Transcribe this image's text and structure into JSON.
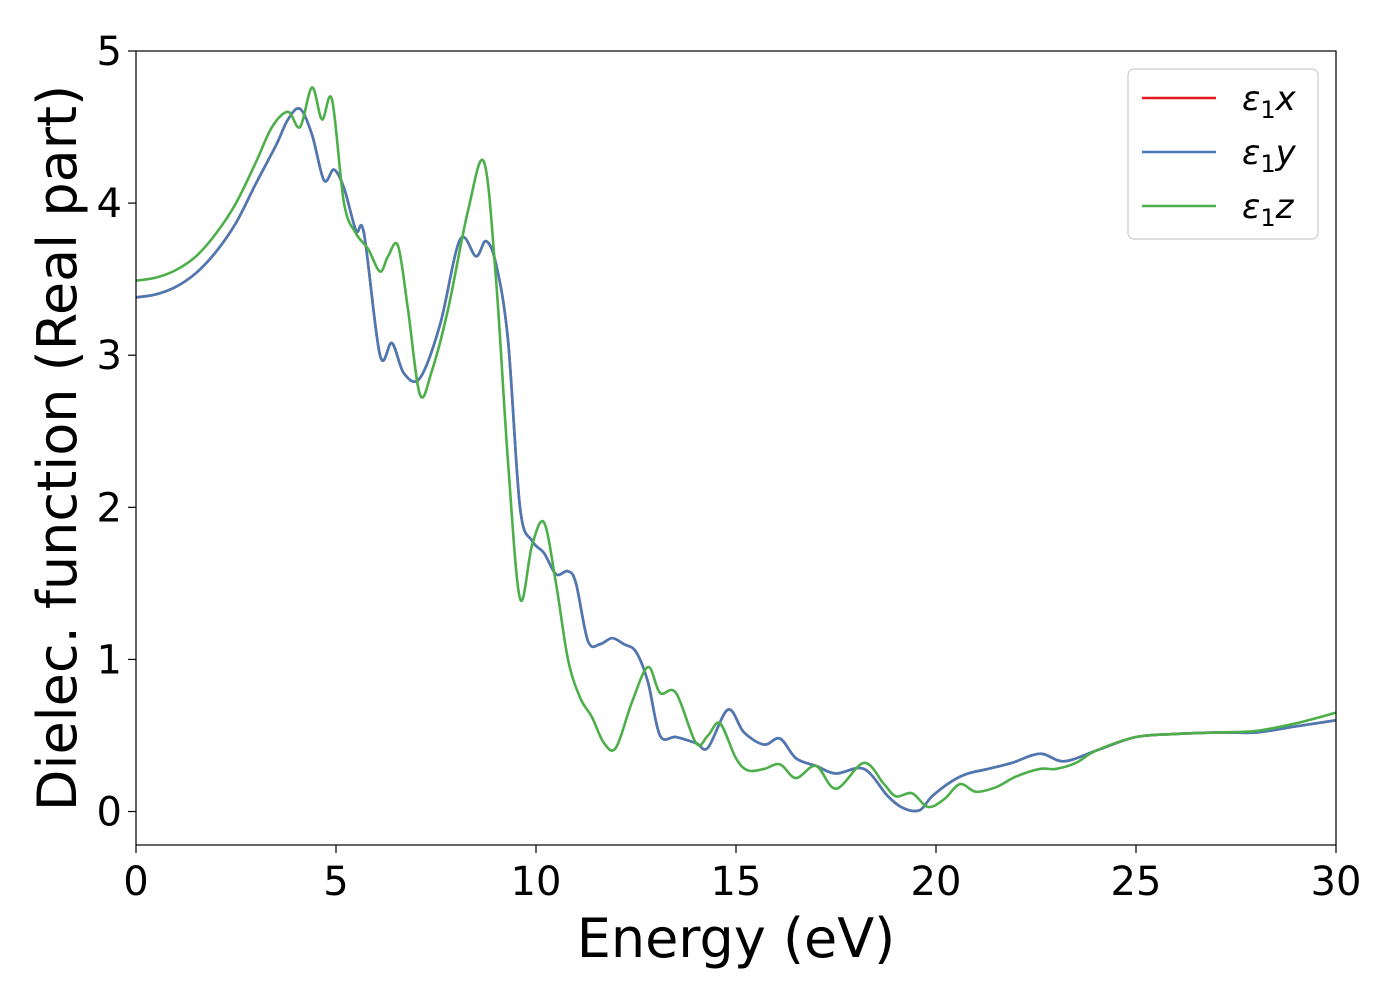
{
  "chart_data": {
    "type": "line",
    "title": "",
    "xlabel": "Energy (eV)",
    "ylabel": "Dielec. function (Real part)",
    "xlim": [
      0,
      30
    ],
    "ylim": [
      -0.22,
      5.0
    ],
    "xticks": [
      0,
      5,
      10,
      15,
      20,
      25,
      30
    ],
    "yticks": [
      0,
      1,
      2,
      3,
      4,
      5
    ],
    "grid": false,
    "legend_position": "top-right",
    "legend": [
      {
        "label": "ε1x",
        "main": "ε",
        "sub": "1",
        "suffix": "x",
        "color": "#e41a1c"
      },
      {
        "label": "ε1y",
        "main": "ε",
        "sub": "1",
        "suffix": "y",
        "color": "#4a7ab5"
      },
      {
        "label": "ε1z",
        "main": "ε",
        "sub": "1",
        "suffix": "z",
        "color": "#4daf4a"
      }
    ],
    "series": [
      {
        "name": "ε1x",
        "color": "#e41a1c",
        "x": [
          0,
          0.5,
          1,
          1.5,
          2,
          2.5,
          3,
          3.5,
          3.8,
          4.1,
          4.4,
          4.7,
          4.95,
          5.2,
          5.5,
          5.7,
          6.1,
          6.4,
          6.7,
          7.1,
          7.6,
          8.1,
          8.5,
          8.75,
          9.0,
          9.3,
          9.6,
          9.9,
          10.2,
          10.5,
          10.8,
          11.0,
          11.3,
          11.6,
          11.9,
          12.2,
          12.5,
          12.8,
          13.1,
          13.5,
          14.0,
          14.3,
          14.8,
          15.2,
          15.7,
          16.1,
          16.5,
          17.0,
          17.5,
          18.2,
          18.8,
          19.2,
          19.6,
          19.9,
          20.4,
          20.8,
          21.3,
          21.9,
          22.6,
          23.2,
          24,
          25,
          26,
          27,
          28,
          29,
          30
        ],
        "y": [
          3.38,
          3.4,
          3.45,
          3.54,
          3.68,
          3.87,
          4.13,
          4.38,
          4.55,
          4.62,
          4.45,
          4.15,
          4.22,
          4.1,
          3.82,
          3.8,
          3.0,
          3.08,
          2.88,
          2.85,
          3.2,
          3.76,
          3.65,
          3.75,
          3.6,
          3.1,
          2.0,
          1.78,
          1.7,
          1.56,
          1.58,
          1.5,
          1.12,
          1.1,
          1.14,
          1.1,
          1.05,
          0.85,
          0.5,
          0.49,
          0.45,
          0.42,
          0.67,
          0.52,
          0.44,
          0.48,
          0.35,
          0.3,
          0.25,
          0.28,
          0.1,
          0.02,
          0.01,
          0.1,
          0.2,
          0.25,
          0.28,
          0.32,
          0.38,
          0.33,
          0.4,
          0.49,
          0.51,
          0.52,
          0.52,
          0.56,
          0.6
        ]
      },
      {
        "name": "ε1y",
        "color": "#4a7ab5",
        "x": [
          0,
          0.5,
          1,
          1.5,
          2,
          2.5,
          3,
          3.5,
          3.8,
          4.1,
          4.4,
          4.7,
          4.95,
          5.2,
          5.5,
          5.7,
          6.1,
          6.4,
          6.7,
          7.1,
          7.6,
          8.1,
          8.5,
          8.75,
          9.0,
          9.3,
          9.6,
          9.9,
          10.2,
          10.5,
          10.8,
          11.0,
          11.3,
          11.6,
          11.9,
          12.2,
          12.5,
          12.8,
          13.1,
          13.5,
          14.0,
          14.3,
          14.8,
          15.2,
          15.7,
          16.1,
          16.5,
          17.0,
          17.5,
          18.2,
          18.8,
          19.2,
          19.6,
          19.9,
          20.4,
          20.8,
          21.3,
          21.9,
          22.6,
          23.2,
          24,
          25,
          26,
          27,
          28,
          29,
          30
        ],
        "y": [
          3.38,
          3.4,
          3.45,
          3.54,
          3.68,
          3.87,
          4.13,
          4.38,
          4.55,
          4.62,
          4.45,
          4.15,
          4.22,
          4.1,
          3.82,
          3.8,
          3.0,
          3.08,
          2.88,
          2.85,
          3.2,
          3.76,
          3.65,
          3.75,
          3.6,
          3.1,
          2.0,
          1.78,
          1.7,
          1.56,
          1.58,
          1.5,
          1.12,
          1.1,
          1.14,
          1.1,
          1.05,
          0.85,
          0.5,
          0.49,
          0.45,
          0.42,
          0.67,
          0.52,
          0.44,
          0.48,
          0.35,
          0.3,
          0.25,
          0.28,
          0.1,
          0.02,
          0.01,
          0.1,
          0.2,
          0.25,
          0.28,
          0.32,
          0.38,
          0.33,
          0.4,
          0.49,
          0.51,
          0.52,
          0.52,
          0.56,
          0.6
        ]
      },
      {
        "name": "ε1z",
        "color": "#4daf4a",
        "x": [
          0,
          0.5,
          1,
          1.5,
          2,
          2.5,
          3,
          3.4,
          3.8,
          4.1,
          4.4,
          4.65,
          4.9,
          5.2,
          5.5,
          5.8,
          6.1,
          6.3,
          6.55,
          6.8,
          7.1,
          7.4,
          7.8,
          8.3,
          8.7,
          9.0,
          9.3,
          9.6,
          9.9,
          10.2,
          10.5,
          10.8,
          11.1,
          11.4,
          11.7,
          12.0,
          12.4,
          12.8,
          13.1,
          13.5,
          14.0,
          14.3,
          14.6,
          15.0,
          15.3,
          15.7,
          16.1,
          16.5,
          17.0,
          17.5,
          18.2,
          18.7,
          19.0,
          19.4,
          19.8,
          20.2,
          20.6,
          21.0,
          21.5,
          22.0,
          22.6,
          23.0,
          23.5,
          24,
          25,
          26,
          27,
          28,
          29,
          30
        ],
        "y": [
          3.49,
          3.51,
          3.56,
          3.65,
          3.8,
          4.0,
          4.27,
          4.5,
          4.6,
          4.5,
          4.76,
          4.55,
          4.68,
          4.0,
          3.8,
          3.7,
          3.55,
          3.65,
          3.72,
          3.3,
          2.74,
          2.9,
          3.3,
          3.95,
          4.27,
          3.5,
          2.3,
          1.4,
          1.75,
          1.9,
          1.5,
          1.0,
          0.75,
          0.62,
          0.45,
          0.42,
          0.72,
          0.95,
          0.78,
          0.78,
          0.45,
          0.5,
          0.58,
          0.35,
          0.27,
          0.28,
          0.31,
          0.22,
          0.3,
          0.15,
          0.32,
          0.18,
          0.1,
          0.12,
          0.03,
          0.08,
          0.18,
          0.13,
          0.16,
          0.23,
          0.28,
          0.28,
          0.32,
          0.4,
          0.49,
          0.51,
          0.52,
          0.53,
          0.58,
          0.65
        ]
      }
    ]
  }
}
